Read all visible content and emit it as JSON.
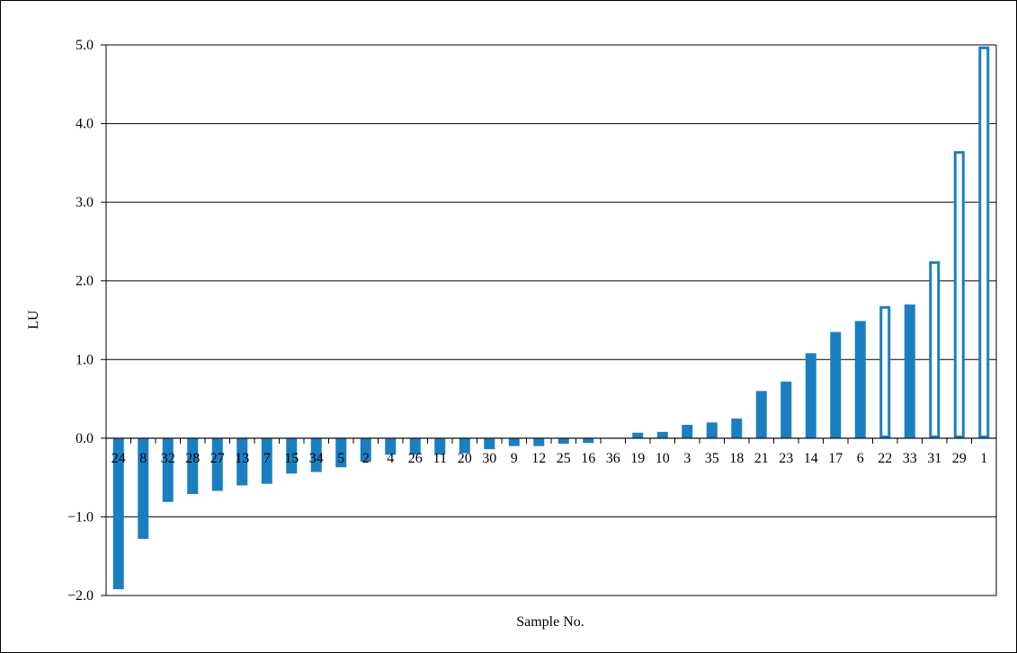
{
  "chart_data": {
    "type": "bar",
    "title": "",
    "xlabel": "Sample No.",
    "ylabel": "LU",
    "ylim": [
      -2.0,
      5.0
    ],
    "yticks": [
      "5.0",
      "4.0",
      "3.0",
      "2.0",
      "1.0",
      "0.0",
      "−1.0",
      "−2.0"
    ],
    "ytick_values": [
      5,
      4,
      3,
      2,
      1,
      0,
      -1,
      -2
    ],
    "grid": true,
    "bar_color": "#1a7fc1",
    "categories": [
      "24",
      "8",
      "32",
      "28",
      "27",
      "13",
      "7",
      "15",
      "34",
      "5",
      "2",
      "4",
      "26",
      "11",
      "20",
      "30",
      "9",
      "12",
      "25",
      "16",
      "36",
      "19",
      "10",
      "3",
      "35",
      "18",
      "21",
      "23",
      "14",
      "17",
      "6",
      "22",
      "33",
      "31",
      "29",
      "1"
    ],
    "values": [
      -1.92,
      -1.28,
      -0.81,
      -0.71,
      -0.67,
      -0.6,
      -0.58,
      -0.45,
      -0.43,
      -0.37,
      -0.3,
      -0.21,
      -0.21,
      -0.21,
      -0.19,
      -0.14,
      -0.1,
      -0.1,
      -0.07,
      -0.06,
      0.0,
      0.07,
      0.08,
      0.17,
      0.2,
      0.25,
      0.6,
      0.72,
      1.08,
      1.35,
      1.49,
      1.68,
      1.7,
      2.25,
      3.65,
      4.98
    ],
    "hollow": [
      false,
      false,
      false,
      false,
      false,
      false,
      false,
      false,
      false,
      false,
      false,
      false,
      false,
      false,
      false,
      false,
      false,
      false,
      false,
      false,
      false,
      false,
      false,
      false,
      false,
      false,
      false,
      false,
      false,
      false,
      false,
      true,
      false,
      true,
      true,
      true
    ]
  }
}
